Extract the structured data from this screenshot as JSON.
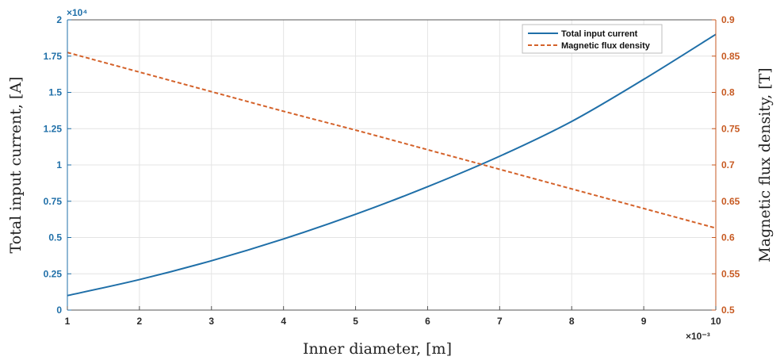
{
  "chart_data": {
    "type": "line",
    "xlabel": "Inner diameter, [m]",
    "ylabel_left": "Total input current, [A]",
    "ylabel_right": "Magnetic flux density, [T]",
    "x_exponent_label": "×10⁻³",
    "y_left_exponent_label": "×10⁴",
    "x_ticks": [
      "1",
      "2",
      "3",
      "4",
      "5",
      "6",
      "7",
      "8",
      "9",
      "10"
    ],
    "y_left_ticks": [
      "0",
      "0.25",
      "0.5",
      "0.75",
      "1",
      "1.25",
      "1.5",
      "1.75",
      "2"
    ],
    "y_right_ticks": [
      "0.5",
      "0.55",
      "0.6",
      "0.65",
      "0.7",
      "0.75",
      "0.8",
      "0.85",
      "0.9"
    ],
    "xlim": [
      0.001,
      0.01
    ],
    "ylim_left": [
      0,
      20000
    ],
    "ylim_right": [
      0.5,
      0.9
    ],
    "grid": true,
    "legend_position": "top-right",
    "series": [
      {
        "name": "Total input current",
        "axis": "left",
        "color": "#1f6fa8",
        "style": "solid",
        "x": [
          0.001,
          0.002,
          0.003,
          0.004,
          0.005,
          0.006,
          0.007,
          0.008,
          0.009,
          0.01
        ],
        "values": [
          1000,
          2100,
          3400,
          4900,
          6600,
          8500,
          10600,
          13000,
          15900,
          19000
        ]
      },
      {
        "name": "Magnetic flux density",
        "axis": "right",
        "color": "#d4622a",
        "style": "dashed",
        "x": [
          0.001,
          0.002,
          0.003,
          0.004,
          0.005,
          0.006,
          0.007,
          0.008,
          0.009,
          0.01
        ],
        "values": [
          0.855,
          0.828,
          0.801,
          0.774,
          0.748,
          0.721,
          0.694,
          0.667,
          0.64,
          0.613
        ]
      }
    ]
  }
}
